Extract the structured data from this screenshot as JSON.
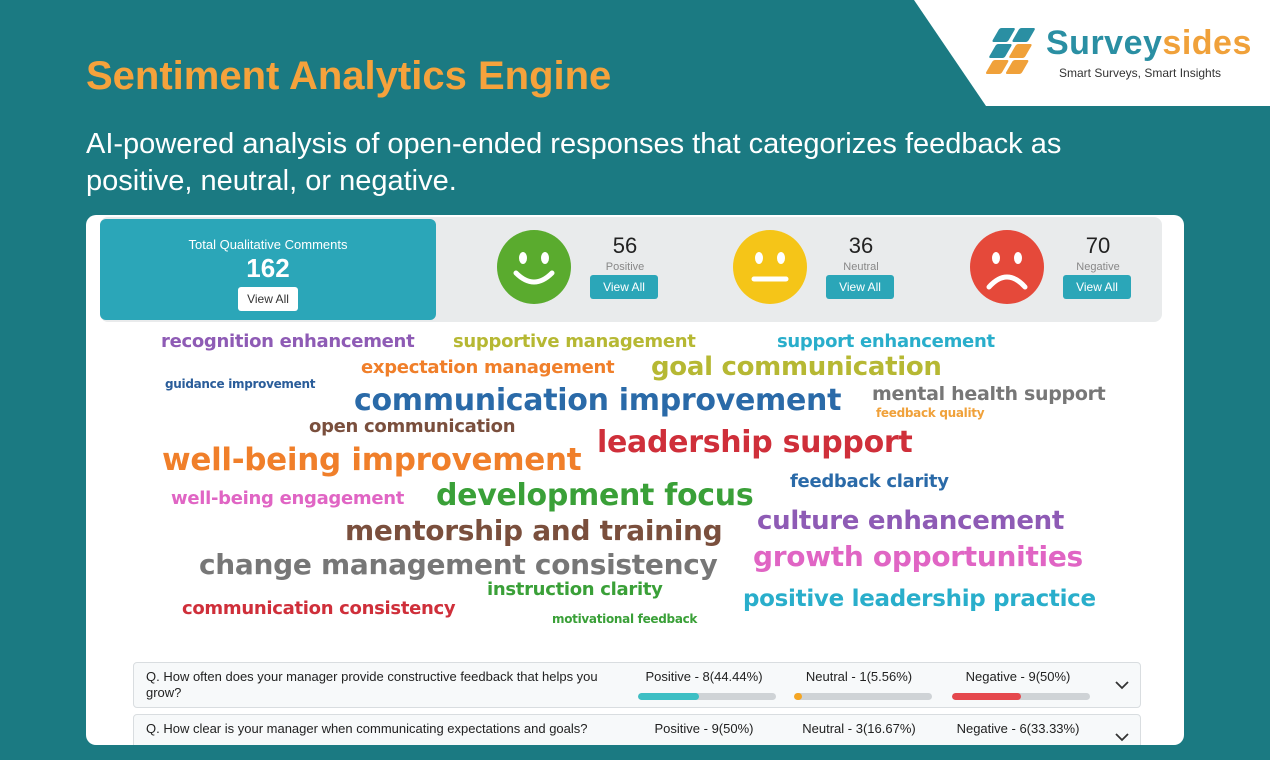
{
  "brand": {
    "name_part1": "Survey",
    "name_part2": "sides",
    "tagline": "Smart Surveys, Smart Insights",
    "colors": {
      "teal": "#2a8fa3",
      "orange": "#f0a13a"
    }
  },
  "hero": {
    "title": "Sentiment Analytics Engine",
    "subtitle": "AI-powered analysis of open-ended responses that categorizes feedback as positive, neutral, or negative."
  },
  "summary": {
    "total_label": "Total Qualitative Comments",
    "total_count": "162",
    "view_all_label": "View All",
    "positive": {
      "count": "56",
      "label": "Positive",
      "icon": "smiley-face-icon",
      "color": "#5aab2e"
    },
    "neutral": {
      "count": "36",
      "label": "Neutral",
      "icon": "neutral-face-icon",
      "color": "#f5c518"
    },
    "negative": {
      "count": "70",
      "label": "Negative",
      "icon": "sad-face-icon",
      "color": "#e5493a"
    }
  },
  "word_cloud": [
    {
      "text": "recognition enhancement",
      "color": "#8e5bb5"
    },
    {
      "text": "supportive management",
      "color": "#b6b833"
    },
    {
      "text": "support enhancement",
      "color": "#29aecb"
    },
    {
      "text": "expectation management",
      "color": "#f07f2a"
    },
    {
      "text": "goal communication",
      "color": "#b6b833"
    },
    {
      "text": "guidance improvement",
      "color": "#2a5d9a"
    },
    {
      "text": "communication improvement",
      "color": "#2a6aa8"
    },
    {
      "text": "mental health support",
      "color": "#777777"
    },
    {
      "text": "feedback quality",
      "color": "#f0a13a"
    },
    {
      "text": "open communication",
      "color": "#7a4f3d"
    },
    {
      "text": "leadership support",
      "color": "#cf2f3a"
    },
    {
      "text": "well-being improvement",
      "color": "#f07f2a"
    },
    {
      "text": "feedback clarity",
      "color": "#2a6aa8"
    },
    {
      "text": "well-being engagement",
      "color": "#e065c4"
    },
    {
      "text": "development focus",
      "color": "#3aa038"
    },
    {
      "text": "culture enhancement",
      "color": "#8e5bb5"
    },
    {
      "text": "mentorship and training",
      "color": "#7a4f3d"
    },
    {
      "text": "growth opportunities",
      "color": "#e065c4"
    },
    {
      "text": "change management consistency",
      "color": "#777777"
    },
    {
      "text": "instruction clarity",
      "color": "#3aa038"
    },
    {
      "text": "positive leadership practice",
      "color": "#29aecb"
    },
    {
      "text": "communication consistency",
      "color": "#cf2f3a"
    },
    {
      "text": "motivational feedback",
      "color": "#3aa038"
    }
  ],
  "questions": [
    {
      "text": "Q. How often does your manager provide constructive feedback that helps you grow?",
      "positive": "Positive - 8(44.44%)",
      "positive_pct": 44.44,
      "neutral": "Neutral - 1(5.56%)",
      "neutral_pct": 5.56,
      "negative": "Negative - 9(50%)",
      "negative_pct": 50
    },
    {
      "text": "Q. How clear is your manager when communicating expectations and goals?",
      "positive": "Positive - 9(50%)",
      "positive_pct": 50,
      "neutral": "Neutral - 3(16.67%)",
      "neutral_pct": 16.67,
      "negative": "Negative - 6(33.33%)",
      "negative_pct": 33.33
    }
  ],
  "bar_colors": {
    "positive": "#3dbfc4",
    "neutral": "#f5a623",
    "negative": "#e5484d"
  }
}
